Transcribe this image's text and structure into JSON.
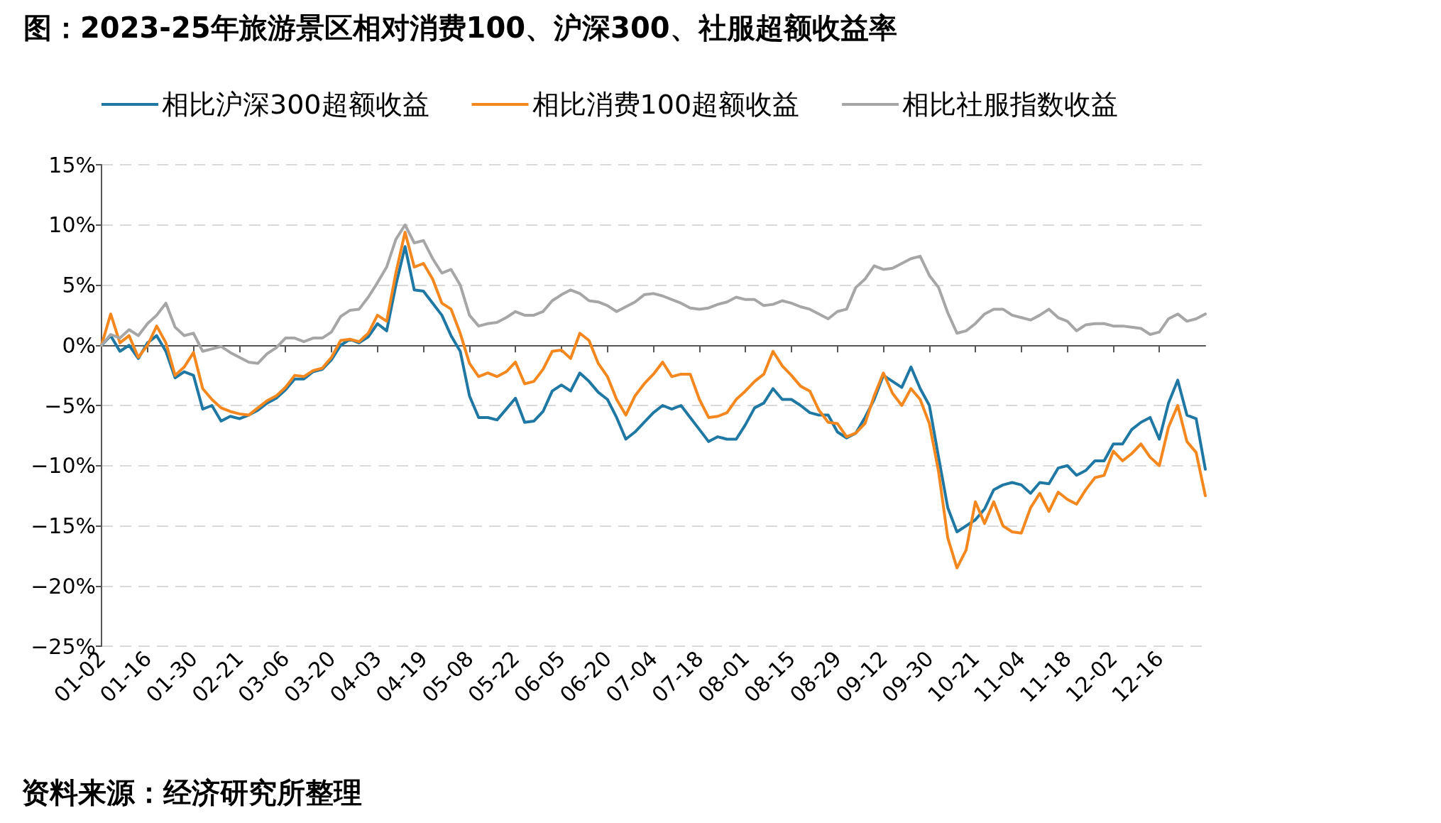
{
  "chart_data": {
    "type": "line",
    "title": "图：2023-25年旅游景区相对消费100、沪深300、社服超额收益率",
    "annotations": [
      "资料来源：经济研究所整理"
    ],
    "categories": [
      "01-02",
      null,
      null,
      null,
      null,
      "01-16",
      null,
      null,
      null,
      null,
      "01-30",
      null,
      null,
      null,
      null,
      "02-21",
      null,
      null,
      null,
      null,
      "03-06",
      null,
      null,
      null,
      null,
      "03-20",
      null,
      null,
      null,
      null,
      "04-03",
      null,
      null,
      null,
      null,
      "04-19",
      null,
      null,
      null,
      null,
      "05-08",
      null,
      null,
      null,
      null,
      "05-22",
      null,
      null,
      null,
      null,
      "06-05",
      null,
      null,
      null,
      null,
      "06-20",
      null,
      null,
      null,
      null,
      "07-04",
      null,
      null,
      null,
      null,
      "07-18",
      null,
      null,
      null,
      null,
      "08-01",
      null,
      null,
      null,
      null,
      "08-15",
      null,
      null,
      null,
      null,
      "08-29",
      null,
      null,
      null,
      null,
      "09-12",
      null,
      null,
      null,
      null,
      "09-30",
      null,
      null,
      null,
      null,
      "10-21",
      null,
      null,
      null,
      null,
      "11-04",
      null,
      null,
      null,
      null,
      "11-18",
      null,
      null,
      null,
      null,
      "12-02",
      null,
      null,
      null,
      null,
      "12-16",
      null,
      null,
      null,
      null,
      null
    ],
    "series": [
      {
        "name": "相比沪深300超额收益",
        "color": "#1f78a4",
        "values": [
          0,
          0.8,
          -0.5,
          0,
          -1.1,
          0.2,
          0.8,
          -0.5,
          -2.7,
          -2.2,
          -2.5,
          -5.3,
          -5,
          -6.3,
          -5.9,
          -6.1,
          -5.8,
          -5.4,
          -4.8,
          -4.4,
          -3.7,
          -2.8,
          -2.8,
          -2.2,
          -2,
          -1.2,
          0,
          0.5,
          0.2,
          0.7,
          1.8,
          1.2,
          5,
          8.2,
          4.6,
          4.5,
          3.5,
          2.5,
          0.8,
          -0.5,
          -4.2,
          -6,
          -6,
          -6.2,
          -5.3,
          -4.4,
          -6.4,
          -6.3,
          -5.5,
          -3.8,
          -3.3,
          -3.8,
          -2.3,
          -3,
          -3.9,
          -4.5,
          -6,
          -7.8,
          -7.2,
          -6.4,
          -5.6,
          -5,
          -5.3,
          -5,
          -6,
          -7,
          -8,
          -7.6,
          -7.8,
          -7.8,
          -6.6,
          -5.2,
          -4.8,
          -3.6,
          -4.5,
          -4.5,
          -5,
          -5.6,
          -5.8,
          -5.8,
          -7.2,
          -7.7,
          -7.3,
          -6,
          -4.5,
          -2.5,
          -3,
          -3.5,
          -1.8,
          -3.6,
          -5,
          -9.3,
          -13.5,
          -15.5,
          -15,
          -14.5,
          -13.6,
          -12,
          -11.6,
          -11.4,
          -11.6,
          -12.3,
          -11.4,
          -11.5,
          -10.2,
          -10,
          -10.8,
          -10.4,
          -9.6,
          -9.6,
          -8.2,
          -8.2,
          -7,
          -6.4,
          -6,
          -7.8,
          -4.8,
          -2.9,
          -5.8,
          -6.1,
          -10.3
        ]
      },
      {
        "name": "相比消费100超额收益",
        "color": "#f5871f",
        "values": [
          0,
          2.6,
          0.2,
          0.8,
          -1,
          0,
          1.6,
          0.2,
          -2.5,
          -1.8,
          -0.6,
          -3.6,
          -4.5,
          -5.2,
          -5.5,
          -5.7,
          -5.8,
          -5.2,
          -4.6,
          -4.2,
          -3.5,
          -2.5,
          -2.6,
          -2.1,
          -1.9,
          -1,
          0.4,
          0.5,
          0.3,
          1,
          2.5,
          2,
          6,
          9.4,
          6.5,
          6.8,
          5.5,
          3.5,
          3,
          1,
          -1.5,
          -2.6,
          -2.3,
          -2.6,
          -2.2,
          -1.4,
          -3.2,
          -3,
          -2,
          -0.5,
          -0.4,
          -1.1,
          1,
          0.4,
          -1.5,
          -2.6,
          -4.5,
          -5.8,
          -4.2,
          -3.2,
          -2.4,
          -1.4,
          -2.6,
          -2.4,
          -2.4,
          -4.5,
          -6,
          -5.9,
          -5.6,
          -4.5,
          -3.8,
          -3,
          -2.4,
          -0.5,
          -1.7,
          -2.5,
          -3.4,
          -3.8,
          -5.4,
          -6.4,
          -6.5,
          -7.6,
          -7.3,
          -6.5,
          -4.2,
          -2.3,
          -4,
          -5,
          -3.6,
          -4.5,
          -6.5,
          -10.5,
          -16,
          -18.5,
          -17,
          -13,
          -14.8,
          -13,
          -15,
          -15.5,
          -15.6,
          -13.5,
          -12.3,
          -13.8,
          -12.2,
          -12.8,
          -13.2,
          -12,
          -11,
          -10.8,
          -8.8,
          -9.6,
          -9,
          -8.2,
          -9.3,
          -10,
          -6.8,
          -5,
          -8,
          -8.9,
          -12.5
        ]
      },
      {
        "name": "相比社服指数收益",
        "color": "#a6a6a6",
        "values": [
          0,
          0.9,
          0.6,
          1.3,
          0.8,
          1.8,
          2.5,
          3.5,
          1.5,
          0.8,
          1,
          -0.5,
          -0.3,
          -0.1,
          -0.6,
          -1,
          -1.4,
          -1.5,
          -0.7,
          -0.2,
          0.6,
          0.6,
          0.3,
          0.6,
          0.6,
          1.1,
          2.4,
          2.9,
          3,
          4,
          5.2,
          6.5,
          8.8,
          10,
          8.5,
          8.7,
          7.2,
          6,
          6.3,
          5,
          2.5,
          1.6,
          1.8,
          1.9,
          2.3,
          2.8,
          2.5,
          2.5,
          2.8,
          3.7,
          4.2,
          4.6,
          4.3,
          3.7,
          3.6,
          3.3,
          2.8,
          3.2,
          3.6,
          4.2,
          4.3,
          4.1,
          3.8,
          3.5,
          3.1,
          3,
          3.1,
          3.4,
          3.6,
          4,
          3.8,
          3.8,
          3.3,
          3.4,
          3.7,
          3.5,
          3.2,
          3,
          2.6,
          2.2,
          2.8,
          3,
          4.8,
          5.5,
          6.6,
          6.3,
          6.4,
          6.8,
          7.2,
          7.4,
          5.8,
          4.8,
          2.7,
          1,
          1.2,
          1.8,
          2.6,
          3,
          3,
          2.5,
          2.3,
          2.1,
          2.5,
          3,
          2.3,
          2,
          1.2,
          1.7,
          1.8,
          1.8,
          1.6,
          1.6,
          1.5,
          1.4,
          0.9,
          1.1,
          2.2,
          2.6,
          2,
          2.2,
          2.6
        ]
      }
    ],
    "ylim": [
      -25,
      15
    ],
    "yticks": [
      {
        "value": -25,
        "label": "−25%"
      },
      {
        "value": -20,
        "label": "−20%"
      },
      {
        "value": -15,
        "label": "−15%"
      },
      {
        "value": -10,
        "label": "−10%"
      },
      {
        "value": -5,
        "label": "−5%"
      },
      {
        "value": 0,
        "label": "0%"
      },
      {
        "value": 5,
        "label": "5%"
      },
      {
        "value": 10,
        "label": "10%"
      },
      {
        "value": 15,
        "label": "15%"
      }
    ],
    "grid": "y",
    "legend": "top",
    "marker": "none",
    "line_style": "solid"
  }
}
